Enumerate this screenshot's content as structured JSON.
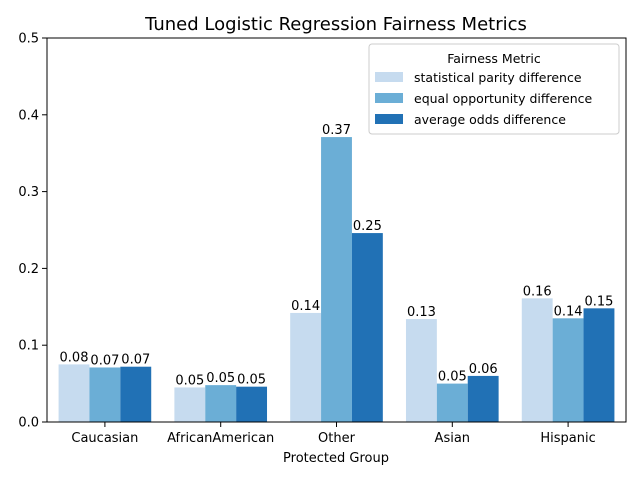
{
  "chart_data": {
    "type": "bar",
    "title": "Tuned Logistic Regression Fairness Metrics",
    "xlabel": "Protected Group",
    "ylabel": "",
    "ylim": [
      0,
      0.5
    ],
    "yticks": [
      0.0,
      0.1,
      0.2,
      0.3,
      0.4,
      0.5
    ],
    "ytick_labels": [
      "0.0",
      "0.1",
      "0.2",
      "0.3",
      "0.4",
      "0.5"
    ],
    "grid": false,
    "legend_title": "Fairness Metric",
    "legend_position": "top-right",
    "categories": [
      "Caucasian",
      "AfricanAmerican",
      "Other",
      "Asian",
      "Hispanic"
    ],
    "series": [
      {
        "name": "statistical parity difference",
        "color": "#c6dbef",
        "values": [
          0.075,
          0.045,
          0.142,
          0.134,
          0.161
        ],
        "labels": [
          "0.08",
          "0.05",
          "0.14",
          "0.13",
          "0.16"
        ]
      },
      {
        "name": "equal opportunity difference",
        "color": "#6baed6",
        "values": [
          0.071,
          0.048,
          0.371,
          0.05,
          0.135
        ],
        "labels": [
          "0.07",
          "0.05",
          "0.37",
          "0.05",
          "0.14"
        ]
      },
      {
        "name": "average odds difference",
        "color": "#2171b5",
        "values": [
          0.072,
          0.046,
          0.246,
          0.06,
          0.148
        ],
        "labels": [
          "0.07",
          "0.05",
          "0.25",
          "0.06",
          "0.15"
        ]
      }
    ]
  }
}
